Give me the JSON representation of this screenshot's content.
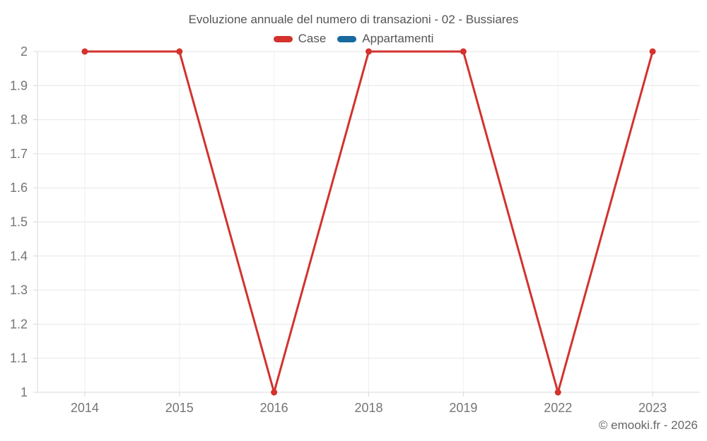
{
  "title": "Evoluzione annuale del numero di transazioni - 02 - Bussiares",
  "copyright": "© emooki.fr - 2026",
  "chart_data": {
    "type": "line",
    "title": "Evoluzione annuale del numero di transazioni - 02 - Bussiares",
    "categories": [
      "2014",
      "2015",
      "2016",
      "2018",
      "2019",
      "2022",
      "2023"
    ],
    "series": [
      {
        "name": "Case",
        "color": "#d3322d",
        "values": [
          2,
          2,
          1,
          2,
          2,
          1,
          2
        ]
      },
      {
        "name": "Appartamenti",
        "color": "#17699e",
        "values": []
      }
    ],
    "xlabel": "",
    "ylabel": "",
    "ylim": [
      1,
      2
    ],
    "ytick_step": 0.1,
    "grid": true,
    "legend_position": "top",
    "marker_radius": 4.5,
    "line_width": 3,
    "colors": {
      "hgrid": "#e6e6e6",
      "vgrid": "#f0f0f0",
      "axis": "#d9d9d9",
      "tick": "#d9d9d9",
      "axis_label": "#757575"
    }
  }
}
